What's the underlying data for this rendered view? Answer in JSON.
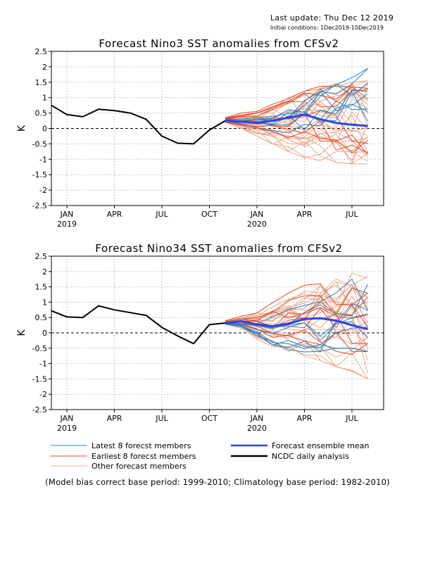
{
  "header": {
    "last_update": "Last update: Thu Dec 12 2019",
    "initial_conditions": "Initial conditions: 1Dec2019-10Dec2019"
  },
  "footnote": "(Model bias correct base period: 1999-2010; Climatology base period: 1982-2010)",
  "legend": [
    {
      "label": "Latest 8 forecst members",
      "color": "#2a7ec0"
    },
    {
      "label": "Earliest 8 forecst members",
      "color": "#e8481e"
    },
    {
      "label": "Other forecast members",
      "color": "#e8a88c"
    },
    {
      "label": "Forecast ensemble mean",
      "color": "#2b45e8"
    },
    {
      "label": "NCDC daily analysis",
      "color": "#000000"
    }
  ],
  "chart_data": [
    {
      "type": "line",
      "title": "Forecast Nino3 SST anomalies from CFSv2",
      "ylabel": "K",
      "ylim": [
        -2.5,
        2.5
      ],
      "yticks": [
        "2.5",
        "2",
        "1.5",
        "1",
        "0.5",
        "0",
        "-0.5",
        "-1",
        "-1.5",
        "-2",
        "-2.5"
      ],
      "xticks": [
        {
          "label": "JAN",
          "year": "2019",
          "month": "2019-01"
        },
        {
          "label": "APR",
          "year": "",
          "month": "2019-04"
        },
        {
          "label": "JUL",
          "year": "",
          "month": "2019-07"
        },
        {
          "label": "OCT",
          "year": "",
          "month": "2019-10"
        },
        {
          "label": "JAN",
          "year": "2020",
          "month": "2020-01"
        },
        {
          "label": "APR",
          "year": "",
          "month": "2020-04"
        },
        {
          "label": "JUL",
          "year": "",
          "month": "2020-07"
        }
      ],
      "grid": true,
      "zero_line": "dashed",
      "observed": {
        "name": "NCDC daily analysis",
        "x": [
          "2018-12",
          "2019-01",
          "2019-02",
          "2019-03",
          "2019-04",
          "2019-05",
          "2019-06",
          "2019-07",
          "2019-08",
          "2019-09",
          "2019-10",
          "2019-11"
        ],
        "y": [
          0.75,
          0.45,
          0.38,
          0.62,
          0.58,
          0.5,
          0.3,
          -0.25,
          -0.48,
          -0.5,
          -0.05,
          0.25
        ]
      },
      "ensemble_mean": {
        "name": "Forecast ensemble mean",
        "x": [
          "2019-11",
          "2019-12",
          "2020-01",
          "2020-02",
          "2020-03",
          "2020-04",
          "2020-05",
          "2020-06",
          "2020-07",
          "2020-08"
        ],
        "y": [
          0.25,
          0.22,
          0.18,
          0.25,
          0.35,
          0.45,
          0.3,
          0.18,
          0.12,
          0.08
        ]
      },
      "members_summary": {
        "months": [
          "2019-11",
          "2019-12",
          "2020-01",
          "2020-02",
          "2020-03",
          "2020-04",
          "2020-05",
          "2020-06",
          "2020-07",
          "2020-08"
        ],
        "latest_min": [
          0.2,
          0.05,
          -0.15,
          -0.35,
          -0.55,
          -0.75,
          -0.9,
          -0.9,
          -0.85,
          -0.8
        ],
        "latest_max": [
          0.3,
          0.3,
          0.35,
          0.5,
          0.7,
          0.9,
          1.2,
          1.5,
          1.8,
          1.95
        ],
        "earliest_min": [
          0.2,
          0.1,
          0.0,
          -0.1,
          -0.3,
          -0.45,
          -0.6,
          -0.7,
          -0.8,
          -0.9
        ],
        "earliest_max": [
          0.35,
          0.5,
          0.55,
          0.8,
          1.1,
          1.35,
          1.45,
          1.45,
          1.35,
          1.3
        ],
        "other_min": [
          0.2,
          0.0,
          -0.25,
          -0.5,
          -0.75,
          -0.95,
          -1.05,
          -1.1,
          -1.15,
          -1.15
        ],
        "other_max": [
          0.35,
          0.45,
          0.55,
          0.75,
          1.0,
          1.2,
          1.3,
          1.45,
          1.5,
          1.55
        ]
      }
    },
    {
      "type": "line",
      "title": "Forecast Nino34 SST anomalies from CFSv2",
      "ylabel": "K",
      "ylim": [
        -2.5,
        2.5
      ],
      "yticks": [
        "2.5",
        "2",
        "1.5",
        "1",
        "0.5",
        "0",
        "-0.5",
        "-1",
        "-1.5",
        "-2",
        "-2.5"
      ],
      "xticks": [
        {
          "label": "JAN",
          "year": "2019",
          "month": "2019-01"
        },
        {
          "label": "APR",
          "year": "",
          "month": "2019-04"
        },
        {
          "label": "JUL",
          "year": "",
          "month": "2019-07"
        },
        {
          "label": "OCT",
          "year": "",
          "month": "2019-10"
        },
        {
          "label": "JAN",
          "year": "2020",
          "month": "2020-01"
        },
        {
          "label": "APR",
          "year": "",
          "month": "2020-04"
        },
        {
          "label": "JUL",
          "year": "",
          "month": "2020-07"
        }
      ],
      "grid": true,
      "zero_line": "dashed",
      "observed": {
        "name": "NCDC daily analysis",
        "x": [
          "2018-12",
          "2019-01",
          "2019-02",
          "2019-03",
          "2019-04",
          "2019-05",
          "2019-06",
          "2019-07",
          "2019-08",
          "2019-09",
          "2019-10",
          "2019-11"
        ],
        "y": [
          0.72,
          0.52,
          0.5,
          0.88,
          0.75,
          0.66,
          0.57,
          0.18,
          -0.1,
          -0.35,
          0.27,
          0.32
        ]
      },
      "ensemble_mean": {
        "name": "Forecast ensemble mean",
        "x": [
          "2019-11",
          "2019-12",
          "2020-01",
          "2020-02",
          "2020-03",
          "2020-04",
          "2020-05",
          "2020-06",
          "2020-07",
          "2020-08"
        ],
        "y": [
          0.32,
          0.38,
          0.28,
          0.22,
          0.3,
          0.45,
          0.48,
          0.4,
          0.25,
          0.12
        ]
      },
      "members_summary": {
        "months": [
          "2019-11",
          "2019-12",
          "2020-01",
          "2020-02",
          "2020-03",
          "2020-04",
          "2020-05",
          "2020-06",
          "2020-07",
          "2020-08"
        ],
        "latest_min": [
          0.28,
          0.2,
          -0.1,
          -0.4,
          -0.55,
          -0.65,
          -0.6,
          -0.5,
          -0.5,
          -0.6
        ],
        "latest_max": [
          0.35,
          0.4,
          0.5,
          0.65,
          0.9,
          1.2,
          1.5,
          1.7,
          1.8,
          1.95
        ],
        "earliest_min": [
          0.28,
          0.25,
          0.05,
          -0.15,
          -0.3,
          -0.45,
          -0.5,
          -0.6,
          -0.7,
          -0.8
        ],
        "earliest_max": [
          0.4,
          0.55,
          0.7,
          1.0,
          1.3,
          1.55,
          1.6,
          1.55,
          1.45,
          1.3
        ],
        "other_min": [
          0.28,
          0.15,
          -0.2,
          -0.45,
          -0.6,
          -0.75,
          -0.9,
          -1.1,
          -1.25,
          -1.5
        ],
        "other_max": [
          0.4,
          0.5,
          0.65,
          0.85,
          1.1,
          1.35,
          1.55,
          1.75,
          1.95,
          1.85
        ]
      }
    }
  ]
}
